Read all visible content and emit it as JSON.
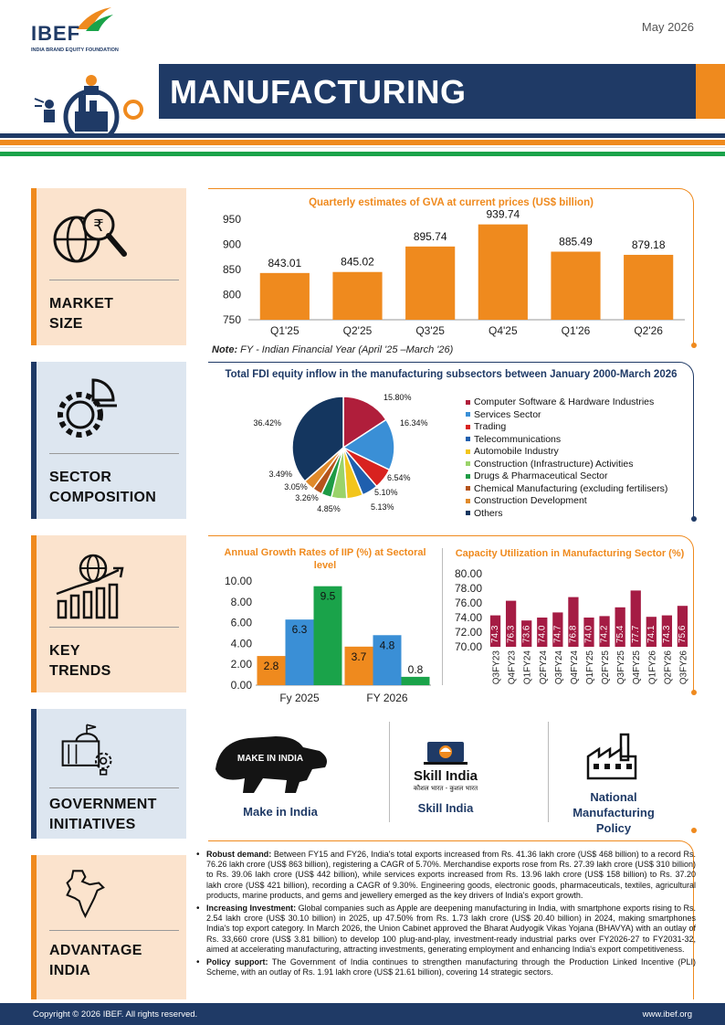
{
  "header": {
    "logo_text": "IBEF",
    "logo_sub": "INDIA BRAND EQUITY FOUNDATION",
    "date": "May 2026",
    "title": "MANUFACTURING"
  },
  "colors": {
    "navy": "#1f3a66",
    "orange": "#ef8a1e",
    "green": "#1aa34a",
    "light_orange_bg": "#fbe3cd",
    "light_blue_bg": "#dde6f0"
  },
  "sections": {
    "market_size": {
      "label_1": "MARKET",
      "label_2": "SIZE",
      "icon": "globe-rupee-magnifier-icon"
    },
    "sector_composition": {
      "label_1": "SECTOR",
      "label_2": "COMPOSITION",
      "icon": "gear-pie-icon"
    },
    "key_trends": {
      "label_1": "KEY",
      "label_2": "TRENDS",
      "icon": "globe-growth-chart-icon"
    },
    "government_initiatives": {
      "label_1": "GOVERNMENT",
      "label_2": "INITIATIVES",
      "icon": "government-building-icon"
    },
    "advantage_india": {
      "label_1": "ADVANTAGE",
      "label_2": "INDIA",
      "icon": "india-map-icon"
    }
  },
  "chart_data": [
    {
      "id": "gva",
      "type": "bar",
      "title": "Quarterly estimates of GVA at current prices (US$ billion)",
      "categories": [
        "Q1'25",
        "Q2'25",
        "Q3'25",
        "Q4'25",
        "Q1'26",
        "Q2'26"
      ],
      "values": [
        843.01,
        845.02,
        895.74,
        939.74,
        885.49,
        879.18
      ],
      "value_labels": [
        "843.01",
        "845.02",
        "895.74",
        "939.74",
        "885.49",
        "879.18"
      ],
      "ylim": [
        750,
        950
      ],
      "yticks": [
        "750",
        "800",
        "850",
        "900",
        "950"
      ],
      "color": "#ef8a1e",
      "note_label": "Note:",
      "note_text": "FY - Indian Financial Year (April '25 –March '26)"
    },
    {
      "id": "fdi",
      "type": "pie",
      "title": "Total FDI equity inflow in the manufacturing subsectors between January 2000-March 2026",
      "slices": [
        {
          "name": "Computer Software & Hardware Industries",
          "value": 15.8,
          "label": "15.80%",
          "color": "#b01e3b"
        },
        {
          "name": "Services Sector",
          "value": 16.34,
          "label": "16.34%",
          "color": "#3a8fd6"
        },
        {
          "name": "Trading",
          "value": 6.54,
          "label": "6.54%",
          "color": "#d8221f"
        },
        {
          "name": "Telecommunications",
          "value": 5.1,
          "label": "5.10%",
          "color": "#1f5fae"
        },
        {
          "name": "Automobile Industry",
          "value": 5.13,
          "label": "5.13%",
          "color": "#f2c51c"
        },
        {
          "name": "Construction (Infrastructure) Activities",
          "value": 4.85,
          "label": "4.85%",
          "color": "#9ad36a"
        },
        {
          "name": "Drugs & Pharmaceutical Sector",
          "value": 3.26,
          "label": "3.26%",
          "color": "#1e9b45"
        },
        {
          "name": "Chemical Manufacturing (excluding fertilisers)",
          "value": 3.05,
          "label": "3.05%",
          "color": "#b5541c"
        },
        {
          "name": "Construction Development",
          "value": 3.49,
          "label": "3.49%",
          "color": "#e08a2a"
        },
        {
          "name": "Others",
          "value": 36.42,
          "label": "36.42%",
          "color": "#14365f"
        }
      ]
    },
    {
      "id": "iip",
      "type": "bar",
      "title": "Annual Growth Rates of IIP (%) at Sectoral level",
      "categories": [
        "Fy 2025",
        "FY 2026"
      ],
      "series": [
        {
          "values": [
            2.8,
            3.7
          ],
          "labels": [
            "2.8",
            "3.7"
          ],
          "color": "#ef8a1e"
        },
        {
          "values": [
            6.3,
            4.8
          ],
          "labels": [
            "6.3",
            "4.8"
          ],
          "color": "#3a8fd6"
        },
        {
          "values": [
            9.5,
            0.8
          ],
          "labels": [
            "9.5",
            "0.8"
          ],
          "color": "#1aa34a"
        }
      ],
      "ylim": [
        0,
        10
      ],
      "yticks": [
        "0.00",
        "2.00",
        "4.00",
        "6.00",
        "8.00",
        "10.00"
      ]
    },
    {
      "id": "capacity",
      "type": "bar",
      "title": "Capacity Utilization in Manufacturing Sector (%)",
      "categories": [
        "Q3FY23",
        "Q4FY23",
        "Q1FY24",
        "Q2FY24",
        "Q3FY24",
        "Q4FY24",
        "Q1FY25",
        "Q2FY25",
        "Q3FY25",
        "Q4FY25",
        "Q1FY26",
        "Q2FY26",
        "Q3FY26"
      ],
      "values": [
        74.3,
        76.3,
        73.6,
        74.0,
        74.7,
        76.8,
        74.0,
        74.2,
        75.4,
        77.7,
        74.1,
        74.3,
        75.6
      ],
      "value_labels": [
        "74.3",
        "76.3",
        "73.6",
        "74.0",
        "74.7",
        "76.8",
        "74.0",
        "74.2",
        "75.4",
        "77.7",
        "74.1",
        "74.3",
        "75.6"
      ],
      "ylim": [
        70,
        80
      ],
      "yticks": [
        "70.00",
        "72.00",
        "74.00",
        "76.00",
        "78.00",
        "80.00"
      ],
      "color": "#a51c44"
    }
  ],
  "initiatives": {
    "make_in_india": {
      "label": "Make in India",
      "logo_text": "MAKE IN INDIA"
    },
    "skill_india": {
      "label": "Skill India",
      "logo_text": "Skill India",
      "logo_tagline": "कौशल भारत - कुशल भारत"
    },
    "national_manufacturing_policy": {
      "label_1": "National",
      "label_2": "Manufacturing",
      "label_3": "Policy"
    }
  },
  "advantage": {
    "b1_head": "Robust demand:",
    "b1_text": " Between FY15 and FY26, India's total exports increased from Rs. 41.36 lakh crore (US$ 468 billion) to a record Rs. 76.26 lakh crore (US$ 863 billion), registering a CAGR of 5.70%. Merchandise exports rose from Rs. 27.39 lakh crore (US$ 310 billion) to Rs. 39.06 lakh crore (US$ 442 billion), while services exports increased from Rs. 13.96 lakh crore (US$ 158 billion) to Rs. 37.20 lakh crore (US$ 421 billion), recording a CAGR of 9.30%. Engineering goods, electronic goods, pharmaceuticals, textiles, agricultural products, marine products, and gems and jewellery emerged as the key drivers of India's export growth.",
    "b2_head": "Increasing Investment:",
    "b2_text": " Global companies such as Apple are deepening manufacturing in India, with smartphone exports rising to Rs. 2.54 lakh crore (US$ 30.10 billion) in 2025, up 47.50% from Rs. 1.73 lakh crore (US$ 20.40 billion) in 2024, making smartphones India's top export category. In March 2026, the Union Cabinet approved the Bharat Audyogik Vikas Yojana (BHAVYA) with an outlay of Rs. 33,660 crore (US$ 3.81 billion) to develop 100 plug-and-play, investment-ready industrial parks over FY2026-27 to FY2031-32, aimed at accelerating manufacturing, attracting investments, generating employment and enhancing India's export competitiveness.",
    "b3_head": "Policy support:",
    "b3_text": " The Government of India continues to strengthen manufacturing through the Production Linked Incentive (PLI) Scheme, with an outlay of Rs. 1.91 lakh crore (US$ 21.61 billion), covering 14 strategic sectors."
  },
  "footer": {
    "copyright": "Copyright © 2026 IBEF. All rights reserved.",
    "website": "www.ibef.org"
  }
}
